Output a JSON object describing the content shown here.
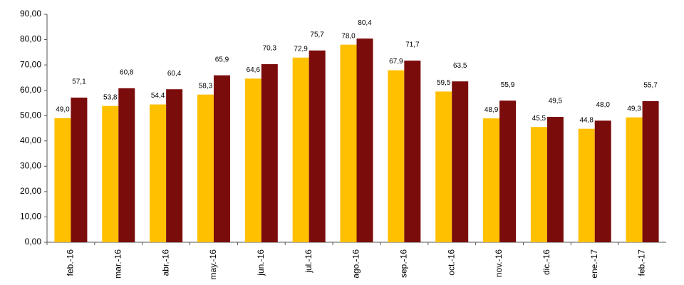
{
  "chart_data": {
    "type": "bar",
    "categories": [
      "feb.-16",
      "mar.-16",
      "abr.-16",
      "may.-16",
      "jun.-16",
      "jul.-16",
      "ago.-16",
      "sep.-16",
      "oct.-16",
      "nov.-16",
      "dic.-16",
      "ene.-17",
      "feb.-17"
    ],
    "series": [
      {
        "color": "#FFC000",
        "values": [
          49.0,
          53.8,
          54.4,
          58.3,
          64.6,
          72.9,
          78.0,
          67.9,
          59.5,
          48.9,
          45.5,
          44.8,
          49.3
        ],
        "value_labels": [
          "49,0",
          "53,8",
          "54,4",
          "58,3",
          "64,6",
          "72,9",
          "78,0",
          "67,9",
          "59,5",
          "48,9",
          "45,5",
          "44,8",
          "49,3"
        ]
      },
      {
        "color": "#7B0C0C",
        "values": [
          57.1,
          60.8,
          60.4,
          65.9,
          70.3,
          75.7,
          80.4,
          71.7,
          63.5,
          55.9,
          49.5,
          48.0,
          55.7
        ],
        "value_labels": [
          "57,1",
          "60,8",
          "60,4",
          "65,9",
          "70,3",
          "75,7",
          "80,4",
          "71,7",
          "63,5",
          "55,9",
          "49,5",
          "48,0",
          "55,7"
        ]
      }
    ],
    "ylim": [
      0,
      90
    ],
    "yticks": [
      {
        "value": 0,
        "label": "0,00"
      },
      {
        "value": 10,
        "label": "10,00"
      },
      {
        "value": 20,
        "label": "20,00"
      },
      {
        "value": 30,
        "label": "30,00"
      },
      {
        "value": 40,
        "label": "40,00"
      },
      {
        "value": 50,
        "label": "50,00"
      },
      {
        "value": 60,
        "label": "60,00"
      },
      {
        "value": 70,
        "label": "70,00"
      },
      {
        "value": 80,
        "label": "80,00"
      },
      {
        "value": 90,
        "label": "90,00"
      }
    ],
    "grid": false
  }
}
